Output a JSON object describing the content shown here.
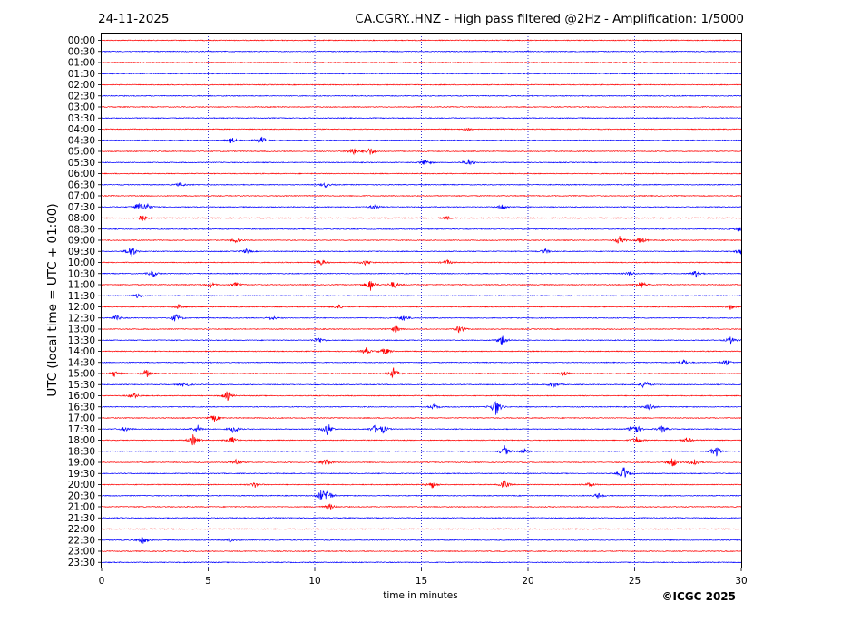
{
  "header": {
    "date": "24-11-2025",
    "title": "CA.CGRY..HNZ - High pass filtered @2Hz - Amplification: 1/5000"
  },
  "footer": {
    "copyright": "©ICGC 2025"
  },
  "chart_data": {
    "type": "line",
    "title": "CA.CGRY..HNZ - High pass filtered @2Hz - Amplification: 1/5000",
    "xlabel": "time in minutes",
    "ylabel": "UTC (local time = UTC + 01:00)",
    "xlim": [
      0,
      30
    ],
    "x_ticks": [
      0,
      5,
      10,
      15,
      20,
      25,
      30
    ],
    "grid": "vertical dotted at 5-minute intervals",
    "trace_colors": [
      "#ff0000",
      "#0000ff"
    ],
    "color_pattern": "alternating by row: 00:00 red, 00:30 blue, ...",
    "rows": [
      "00:00",
      "00:30",
      "01:00",
      "01:30",
      "02:00",
      "02:30",
      "03:00",
      "03:30",
      "04:00",
      "04:30",
      "05:00",
      "05:30",
      "06:00",
      "06:30",
      "07:00",
      "07:30",
      "08:00",
      "08:30",
      "09:00",
      "09:30",
      "10:00",
      "10:30",
      "11:00",
      "11:30",
      "12:00",
      "12:30",
      "13:00",
      "13:30",
      "14:00",
      "14:30",
      "15:00",
      "15:30",
      "16:00",
      "16:30",
      "17:00",
      "17:30",
      "18:00",
      "18:30",
      "19:00",
      "19:30",
      "20:00",
      "20:30",
      "21:00",
      "21:30",
      "22:00",
      "22:30",
      "23:00",
      "23:30"
    ],
    "events": [
      {
        "row": "04:00",
        "x": 17.2,
        "amp": 0.25
      },
      {
        "row": "04:30",
        "x": 6.1,
        "amp": 0.4
      },
      {
        "row": "04:30",
        "x": 7.5,
        "amp": 0.45
      },
      {
        "row": "05:00",
        "x": 11.8,
        "amp": 0.6
      },
      {
        "row": "05:00",
        "x": 12.6,
        "amp": 0.5
      },
      {
        "row": "05:30",
        "x": 15.2,
        "amp": 0.45
      },
      {
        "row": "05:30",
        "x": 17.2,
        "amp": 0.5
      },
      {
        "row": "06:30",
        "x": 3.7,
        "amp": 0.3
      },
      {
        "row": "06:30",
        "x": 10.5,
        "amp": 0.3
      },
      {
        "row": "07:30",
        "x": 1.7,
        "amp": 0.5
      },
      {
        "row": "07:30",
        "x": 2.1,
        "amp": 0.6
      },
      {
        "row": "07:30",
        "x": 12.8,
        "amp": 0.35
      },
      {
        "row": "07:30",
        "x": 18.8,
        "amp": 0.4
      },
      {
        "row": "08:00",
        "x": 1.9,
        "amp": 0.5
      },
      {
        "row": "08:00",
        "x": 16.2,
        "amp": 0.25
      },
      {
        "row": "08:30",
        "x": 29.9,
        "amp": 0.3
      },
      {
        "row": "09:00",
        "x": 6.3,
        "amp": 0.3
      },
      {
        "row": "09:00",
        "x": 24.3,
        "amp": 0.55
      },
      {
        "row": "09:00",
        "x": 25.3,
        "amp": 0.45
      },
      {
        "row": "09:30",
        "x": 1.4,
        "amp": 0.9
      },
      {
        "row": "09:30",
        "x": 6.8,
        "amp": 0.3
      },
      {
        "row": "09:30",
        "x": 20.8,
        "amp": 0.3
      },
      {
        "row": "09:30",
        "x": 30,
        "amp": 0.5
      },
      {
        "row": "10:00",
        "x": 10.3,
        "amp": 0.5
      },
      {
        "row": "10:00",
        "x": 12.4,
        "amp": 0.4
      },
      {
        "row": "10:00",
        "x": 16.2,
        "amp": 0.35
      },
      {
        "row": "10:30",
        "x": 2.4,
        "amp": 0.45
      },
      {
        "row": "10:30",
        "x": 24.8,
        "amp": 0.3
      },
      {
        "row": "10:30",
        "x": 27.9,
        "amp": 0.55
      },
      {
        "row": "11:00",
        "x": 5.1,
        "amp": 0.4
      },
      {
        "row": "11:00",
        "x": 6.3,
        "amp": 0.3
      },
      {
        "row": "11:00",
        "x": 12.6,
        "amp": 0.85
      },
      {
        "row": "11:00",
        "x": 13.7,
        "amp": 0.55
      },
      {
        "row": "11:00",
        "x": 25.3,
        "amp": 0.5
      },
      {
        "row": "11:30",
        "x": 1.7,
        "amp": 0.3
      },
      {
        "row": "12:00",
        "x": 3.6,
        "amp": 0.3
      },
      {
        "row": "12:00",
        "x": 11.1,
        "amp": 0.35
      },
      {
        "row": "12:00",
        "x": 29.5,
        "amp": 0.35
      },
      {
        "row": "12:30",
        "x": 0.7,
        "amp": 0.35
      },
      {
        "row": "12:30",
        "x": 3.5,
        "amp": 0.6
      },
      {
        "row": "12:30",
        "x": 8.0,
        "amp": 0.3
      },
      {
        "row": "12:30",
        "x": 14.2,
        "amp": 0.45
      },
      {
        "row": "13:00",
        "x": 13.8,
        "amp": 0.45
      },
      {
        "row": "13:00",
        "x": 16.8,
        "amp": 0.55
      },
      {
        "row": "13:30",
        "x": 10.2,
        "amp": 0.45
      },
      {
        "row": "13:30",
        "x": 18.8,
        "amp": 0.7
      },
      {
        "row": "13:30",
        "x": 29.5,
        "amp": 0.45
      },
      {
        "row": "14:00",
        "x": 12.4,
        "amp": 0.45
      },
      {
        "row": "14:00",
        "x": 13.3,
        "amp": 0.55
      },
      {
        "row": "14:30",
        "x": 27.3,
        "amp": 0.45
      },
      {
        "row": "14:30",
        "x": 29.3,
        "amp": 0.45
      },
      {
        "row": "15:00",
        "x": 0.6,
        "amp": 0.4
      },
      {
        "row": "15:00",
        "x": 2.1,
        "amp": 0.55
      },
      {
        "row": "15:00",
        "x": 13.7,
        "amp": 0.75
      },
      {
        "row": "15:00",
        "x": 21.7,
        "amp": 0.35
      },
      {
        "row": "15:30",
        "x": 3.9,
        "amp": 0.35
      },
      {
        "row": "15:30",
        "x": 21.2,
        "amp": 0.45
      },
      {
        "row": "15:30",
        "x": 25.5,
        "amp": 0.6
      },
      {
        "row": "16:00",
        "x": 1.5,
        "amp": 0.45
      },
      {
        "row": "16:00",
        "x": 5.9,
        "amp": 0.6
      },
      {
        "row": "16:30",
        "x": 15.6,
        "amp": 0.35
      },
      {
        "row": "16:30",
        "x": 18.5,
        "amp": 1.2
      },
      {
        "row": "16:30",
        "x": 25.7,
        "amp": 0.5
      },
      {
        "row": "17:00",
        "x": 5.3,
        "amp": 0.45
      },
      {
        "row": "17:30",
        "x": 1.1,
        "amp": 0.35
      },
      {
        "row": "17:30",
        "x": 4.5,
        "amp": 0.55
      },
      {
        "row": "17:30",
        "x": 6.2,
        "amp": 0.6
      },
      {
        "row": "17:30",
        "x": 10.6,
        "amp": 0.9
      },
      {
        "row": "17:30",
        "x": 12.8,
        "amp": 0.45
      },
      {
        "row": "17:30",
        "x": 13.2,
        "amp": 0.5
      },
      {
        "row": "17:30",
        "x": 25.0,
        "amp": 1.0
      },
      {
        "row": "17:30",
        "x": 26.3,
        "amp": 0.45
      },
      {
        "row": "18:00",
        "x": 4.3,
        "amp": 0.75
      },
      {
        "row": "18:00",
        "x": 6.1,
        "amp": 0.5
      },
      {
        "row": "18:00",
        "x": 25.1,
        "amp": 0.55
      },
      {
        "row": "18:00",
        "x": 27.5,
        "amp": 0.45
      },
      {
        "row": "18:30",
        "x": 18.9,
        "amp": 0.7
      },
      {
        "row": "18:30",
        "x": 19.8,
        "amp": 0.45
      },
      {
        "row": "18:30",
        "x": 28.8,
        "amp": 0.8
      },
      {
        "row": "19:00",
        "x": 6.3,
        "amp": 0.5
      },
      {
        "row": "19:00",
        "x": 10.5,
        "amp": 0.6
      },
      {
        "row": "19:00",
        "x": 26.8,
        "amp": 0.7
      },
      {
        "row": "19:00",
        "x": 27.8,
        "amp": 0.55
      },
      {
        "row": "19:30",
        "x": 24.5,
        "amp": 0.9
      },
      {
        "row": "20:00",
        "x": 7.2,
        "amp": 0.35
      },
      {
        "row": "20:00",
        "x": 15.5,
        "amp": 0.45
      },
      {
        "row": "20:00",
        "x": 18.9,
        "amp": 0.55
      },
      {
        "row": "20:00",
        "x": 22.9,
        "amp": 0.35
      },
      {
        "row": "20:30",
        "x": 10.3,
        "amp": 0.6
      },
      {
        "row": "20:30",
        "x": 10.6,
        "amp": 0.8
      },
      {
        "row": "20:30",
        "x": 23.3,
        "amp": 0.35
      },
      {
        "row": "21:00",
        "x": 10.7,
        "amp": 0.4
      },
      {
        "row": "22:30",
        "x": 1.9,
        "amp": 0.6
      },
      {
        "row": "22:30",
        "x": 6.0,
        "amp": 0.25
      }
    ]
  }
}
